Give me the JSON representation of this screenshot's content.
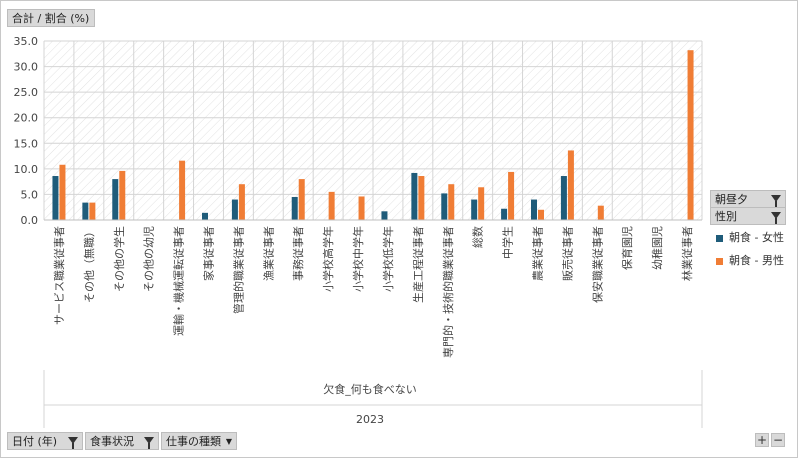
{
  "value_field": {
    "label": "合計 / 割合 (%)"
  },
  "legend_fields": [
    {
      "label": "朝昼夕"
    },
    {
      "label": "性別"
    }
  ],
  "bottom_fields": [
    {
      "label": "日付 (年)"
    },
    {
      "label": "食事状況"
    },
    {
      "label": "仕事の種類"
    }
  ],
  "axis_fields": {
    "field1": "欠食_何も食べない",
    "field2": "2023"
  },
  "zoom": {
    "plus": "+",
    "minus": "−"
  },
  "colors": {
    "female": "#1f5c7a",
    "male": "#f07d35",
    "grid": "#d9d9d9",
    "hatch": "#e4e4e4"
  },
  "chart_data": {
    "type": "bar",
    "ylim": [
      0,
      35
    ],
    "yticks": [
      "0.0",
      "5.0",
      "10.0",
      "15.0",
      "20.0",
      "25.0",
      "30.0",
      "35.0"
    ],
    "categories": [
      "サービス職業従事者",
      "その他（無職）",
      "その他の学生",
      "その他の幼児",
      "運輸・機械運転従事者",
      "家事従事者",
      "管理的職業従事者",
      "漁業従事者",
      "事務従事者",
      "小学校高学年",
      "小学校中学年",
      "小学校低学年",
      "生産工程従事者",
      "専門的・技術的職業従事者",
      "総数",
      "中学生",
      "農業従事者",
      "販売従事者",
      "保安職業従事者",
      "保育園児",
      "幼稚園児",
      "林業従事者"
    ],
    "series": [
      {
        "name": "朝食 - 女性",
        "color": "#1f5c7a",
        "values": [
          8.6,
          3.4,
          8.0,
          null,
          null,
          1.4,
          4.0,
          null,
          4.5,
          null,
          null,
          1.7,
          9.2,
          5.2,
          4.0,
          2.2,
          4.0,
          8.6,
          null,
          null,
          null,
          null
        ]
      },
      {
        "name": "朝食 - 男性",
        "color": "#f07d35",
        "values": [
          10.8,
          3.4,
          9.6,
          null,
          11.6,
          null,
          7.0,
          null,
          8.0,
          5.5,
          4.6,
          null,
          8.6,
          7.0,
          6.4,
          9.4,
          2.0,
          13.6,
          2.8,
          null,
          null,
          33.2
        ]
      }
    ]
  }
}
